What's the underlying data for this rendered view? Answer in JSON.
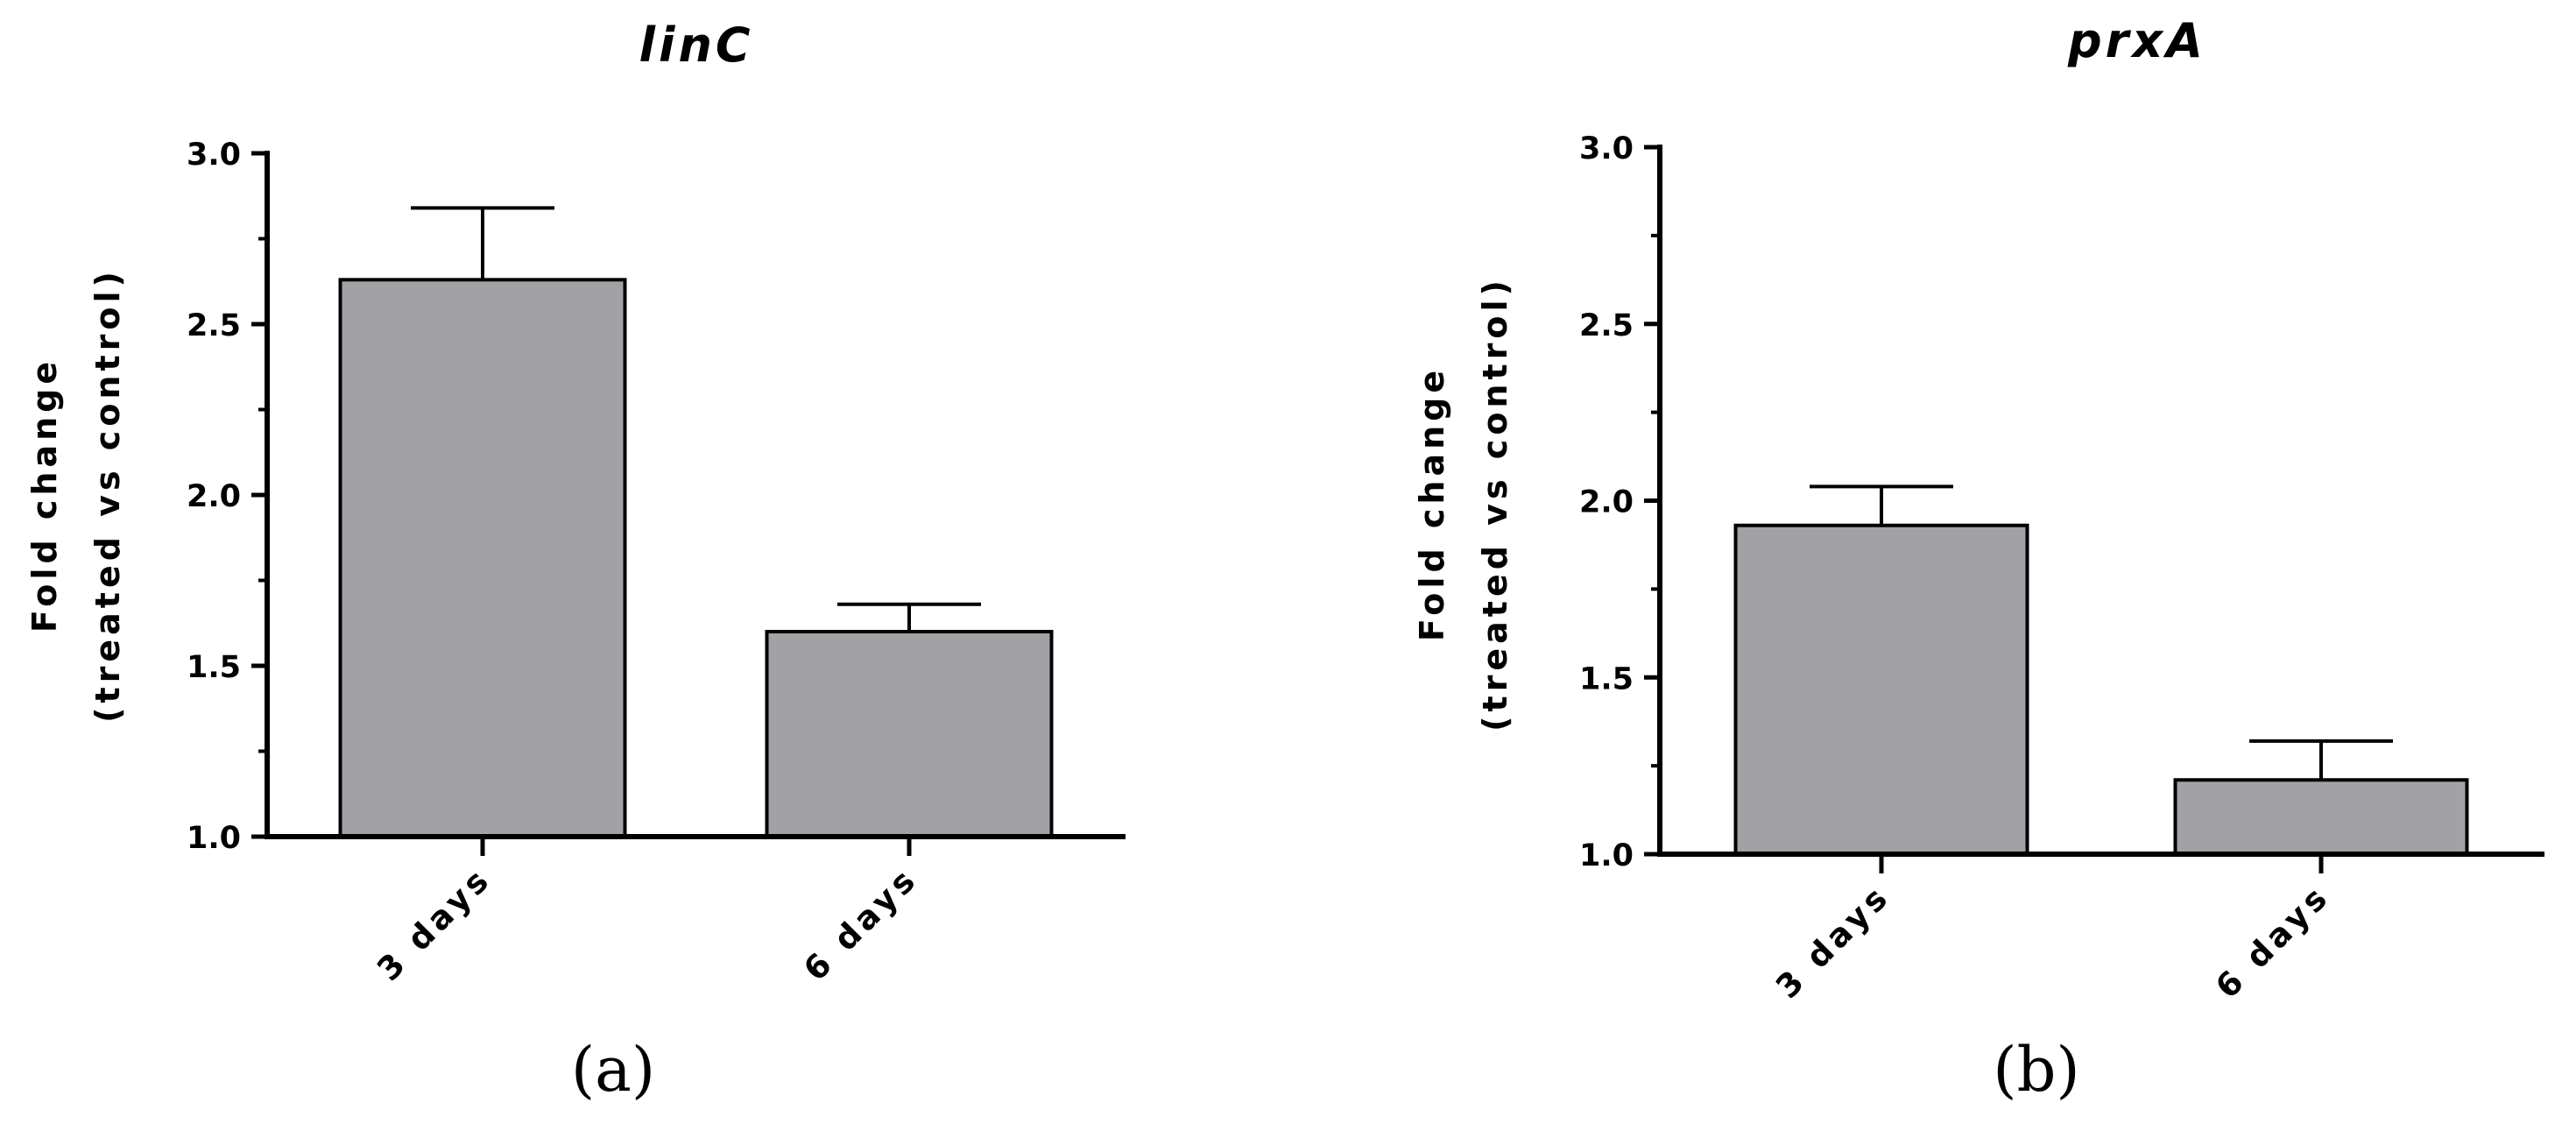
{
  "chart_data": [
    {
      "type": "bar",
      "panel": "(a)",
      "title": "linC",
      "ylabel_lines": [
        "Fold change",
        "(treated vs control)"
      ],
      "categories": [
        "3 days",
        "6 days"
      ],
      "values": [
        2.63,
        1.6
      ],
      "errors": [
        0.21,
        0.08
      ],
      "ylim": [
        1.0,
        3.0
      ],
      "yticks": [
        "1.0",
        "1.5",
        "2.0",
        "2.5",
        "3.0"
      ],
      "bar_color": "#a2a1a6"
    },
    {
      "type": "bar",
      "panel": "(b)",
      "title": "prxA",
      "ylabel_lines": [
        "Fold change",
        "(treated vs control)"
      ],
      "categories": [
        "3 days",
        "6 days"
      ],
      "values": [
        1.93,
        1.21
      ],
      "errors": [
        0.11,
        0.11
      ],
      "ylim": [
        1.0,
        3.0
      ],
      "yticks": [
        "1.0",
        "1.5",
        "2.0",
        "2.5",
        "3.0"
      ],
      "bar_color": "#a2a1a6"
    }
  ]
}
